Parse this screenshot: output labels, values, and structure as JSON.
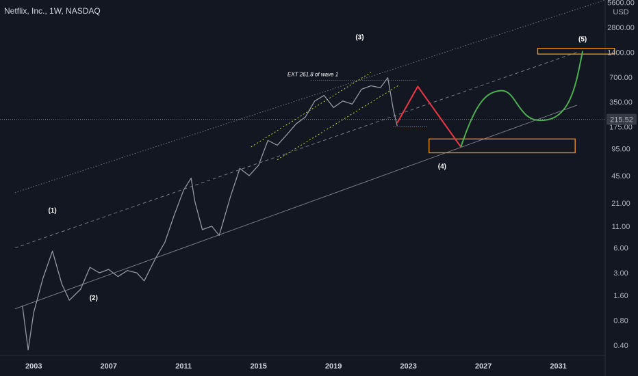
{
  "header": {
    "title": "Netflix, Inc., 1W, NASDAQ"
  },
  "chart_data": {
    "type": "line",
    "title": "Netflix, Inc., 1W, NASDAQ",
    "yscale": "log",
    "ylim": [
      0.3,
      6000
    ],
    "xlim": [
      2001.2,
      2033.5
    ],
    "y_unit": "USD",
    "y_ticks": [
      "0.40",
      "0.80",
      "1.60",
      "3.00",
      "6.00",
      "11.00",
      "21.00",
      "45.00",
      "95.00",
      "175.00",
      "350.00",
      "700.00",
      "1400.00",
      "2800.00",
      "5600.00"
    ],
    "x_ticks": [
      "2003",
      "2007",
      "2011",
      "2015",
      "2019",
      "2023",
      "2027",
      "2031"
    ],
    "last_price": "215.52",
    "price_series": {
      "name": "",
      "x": [
        2002.4,
        2002.7,
        2003.0,
        2003.5,
        2004.0,
        2004.5,
        2004.9,
        2005.5,
        2006.0,
        2006.5,
        2007.0,
        2007.5,
        2008.0,
        2008.5,
        2008.9,
        2009.5,
        2010.0,
        2010.5,
        2011.0,
        2011.4,
        2011.6,
        2012.0,
        2012.5,
        2012.9,
        2013.5,
        2014.0,
        2014.5,
        2015.0,
        2015.5,
        2016.0,
        2016.5,
        2017.0,
        2017.5,
        2018.0,
        2018.5,
        2019.0,
        2019.5,
        2020.0,
        2020.5,
        2021.0,
        2021.5,
        2021.9,
        2022.2,
        2022.4
      ],
      "y": [
        1.2,
        0.35,
        1.0,
        2.6,
        5.5,
        2.2,
        1.4,
        1.9,
        3.5,
        3.0,
        3.3,
        2.7,
        3.2,
        3.0,
        2.4,
        4.5,
        7.0,
        15,
        30,
        42,
        22,
        10,
        11,
        8.5,
        25,
        55,
        45,
        60,
        120,
        105,
        140,
        190,
        230,
        360,
        420,
        300,
        360,
        330,
        500,
        550,
        520,
        690,
        280,
        180
      ]
    },
    "projection_path": {
      "name": "",
      "x": [
        2022.4,
        2023.5,
        2025.8,
        2028.0,
        2030.0,
        2032.3
      ],
      "y": [
        195,
        540,
        100,
        480,
        210,
        1450
      ]
    },
    "wave_labels": [
      {
        "label": "(1)",
        "x": 2004.0,
        "y": 16
      },
      {
        "label": "(2)",
        "x": 2006.2,
        "y": 1.4
      },
      {
        "label": "(3)",
        "x": 2020.4,
        "y": 2000
      },
      {
        "label": "(4)",
        "x": 2024.8,
        "y": 55
      },
      {
        "label": "(5)",
        "x": 2032.3,
        "y": 1900
      }
    ],
    "annotations": [
      {
        "text": "EXT 261.8 of wave 1",
        "x": 2017.9,
        "y": 720
      }
    ],
    "channels": [
      {
        "x": [
          2002.0,
          2033.5
        ],
        "y": [
          28,
          6000
        ],
        "style": "dotted"
      },
      {
        "x": [
          2002.0,
          2032.0
        ],
        "y": [
          6,
          1400
        ],
        "style": "dashed"
      },
      {
        "x": [
          2002.0,
          2032.0
        ],
        "y": [
          1.1,
          320
        ],
        "style": "solid"
      }
    ],
    "zones": [
      {
        "x": [
          2024.1,
          2031.9
        ],
        "y": [
          85,
          125
        ]
      },
      {
        "x": [
          2029.9,
          2034.0
        ],
        "y": [
          1330,
          1560
        ]
      }
    ],
    "colors": {
      "price": "#9598a1",
      "projection_down": "#f23645",
      "projection_up": "#4caf50",
      "zone": "#f7931a",
      "fib": "#c8d83a",
      "guide": "#787b86"
    },
    "grid": false
  }
}
